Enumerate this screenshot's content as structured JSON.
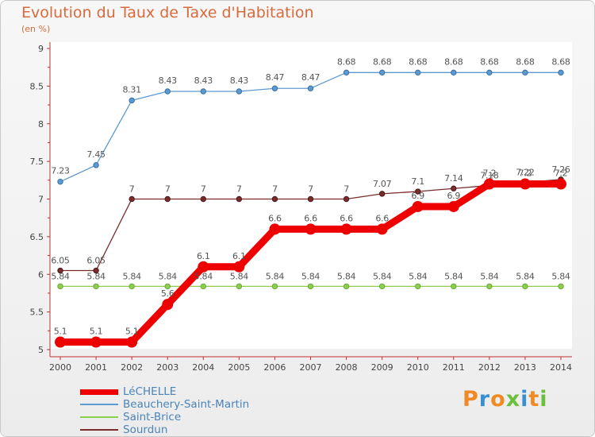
{
  "chart_data": {
    "type": "line",
    "title": "Evolution du Taux de Taxe d'Habitation",
    "subtitle": "(en %)",
    "x": [
      "2000",
      "2001",
      "2002",
      "2003",
      "2004",
      "2005",
      "2006",
      "2007",
      "2008",
      "2009",
      "2010",
      "2011",
      "2012",
      "2013",
      "2014"
    ],
    "ylim": [
      5,
      9
    ],
    "yticks": [
      "5",
      "5.5",
      "6",
      "6.5",
      "7",
      "7.5",
      "8",
      "8.5",
      "9"
    ],
    "grid": false,
    "series": [
      {
        "name": "LéCHELLE",
        "color": "#ee0000",
        "values": [
          5.1,
          5.1,
          5.1,
          5.6,
          6.1,
          6.1,
          6.6,
          6.6,
          6.6,
          6.6,
          6.9,
          6.9,
          7.2,
          7.2,
          7.2
        ],
        "labels": [
          "5.1",
          "5.1",
          "5.1",
          "5.6",
          "6.1",
          "6.1",
          "6.6",
          "6.6",
          "6.6",
          "6.6",
          "6.9",
          "6.9",
          "7.2",
          "7.2",
          "7.2"
        ]
      },
      {
        "name": "Beauchery-Saint-Martin",
        "color": "#5c9ad2",
        "values": [
          7.23,
          7.45,
          8.31,
          8.43,
          8.43,
          8.43,
          8.47,
          8.47,
          8.68,
          8.68,
          8.68,
          8.68,
          8.68,
          8.68,
          8.68
        ],
        "labels": [
          "7.23",
          "7.45",
          "8.31",
          "8.43",
          "8.43",
          "8.43",
          "8.47",
          "8.47",
          "8.68",
          "8.68",
          "8.68",
          "8.68",
          "8.68",
          "8.68",
          "8.68"
        ]
      },
      {
        "name": "Saint-Brice",
        "color": "#8ccf4c",
        "values": [
          5.84,
          5.84,
          5.84,
          5.84,
          5.84,
          5.84,
          5.84,
          5.84,
          5.84,
          5.84,
          5.84,
          5.84,
          5.84,
          5.84,
          5.84
        ],
        "labels": [
          "5.84",
          "5.84",
          "5.84",
          "5.84",
          "5.84",
          "5.84",
          "5.84",
          "5.84",
          "5.84",
          "5.84",
          "5.84",
          "5.84",
          "5.84",
          "5.84",
          "5.84"
        ]
      },
      {
        "name": "Sourdun",
        "color": "#7a2b2b",
        "values": [
          6.05,
          6.05,
          7,
          7,
          7,
          7,
          7,
          7,
          7,
          7.07,
          7.1,
          7.14,
          7.18,
          7.22,
          7.26
        ],
        "labels": [
          "6.05",
          "6.05",
          "7",
          "7",
          "7",
          "7",
          "7",
          "7",
          "7",
          "7.07",
          "7.1",
          "7.14",
          "7.18",
          "7.22",
          "7.26"
        ]
      }
    ]
  },
  "logo": {
    "text": [
      "P",
      "r",
      "o",
      "x",
      "i",
      "t",
      "i"
    ],
    "colors": [
      "#f08a24",
      "#3a8fd1",
      "#f08a24",
      "#6abf3c",
      "#3a8fd1",
      "#f08a24",
      "#6abf3c"
    ]
  }
}
